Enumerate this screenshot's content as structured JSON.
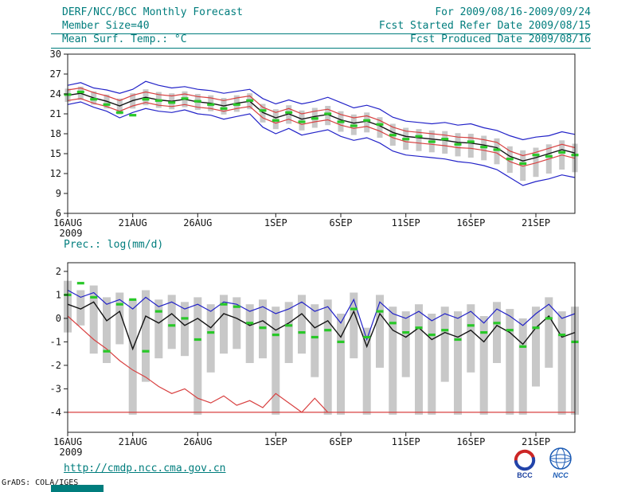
{
  "header": {
    "title": "DERF/NCC/BCC Monthly Forecast",
    "forecast_period": "For 2009/08/16-2009/09/24",
    "member_size": "Member Size=40",
    "refer_date": "Fcst Started Refer Date 2009/08/15",
    "variable_label": "Mean Surf. Temp.: °C",
    "produced_date": "Fcst Produced Date 2009/08/16"
  },
  "footer": {
    "url": "http://cmdp.ncc.cma.gov.cn",
    "credit": "GrADS: COLA/IGES",
    "bcc_label": "BCC",
    "ncc_label": "NCC"
  },
  "colors": {
    "teal": "#007d7d",
    "bar_gray": "#c8c8c8",
    "blue": "#2222c8",
    "red": "#d84040",
    "green": "#28c828",
    "black": "#141414"
  },
  "chart_data": [
    {
      "id": "temp-chart",
      "type": "line",
      "title": "Mean Surf. Temp.: °C",
      "xlabel": "",
      "ylabel": "°C",
      "ylim": [
        6,
        30
      ],
      "yticks": [
        6,
        9,
        12,
        15,
        18,
        21,
        24,
        27,
        30
      ],
      "x_count": 40,
      "x_year": "2009",
      "xticks": [
        {
          "label": "16AUG",
          "pos": 0
        },
        {
          "label": "21AUG",
          "pos": 5
        },
        {
          "label": "26AUG",
          "pos": 10
        },
        {
          "label": "1SEP",
          "pos": 16
        },
        {
          "label": "6SEP",
          "pos": 21
        },
        {
          "label": "11SEP",
          "pos": 26
        },
        {
          "label": "16SEP",
          "pos": 31
        },
        {
          "label": "21SEP",
          "pos": 36
        }
      ],
      "series": [
        {
          "name": "member-spread-bars",
          "kind": "bars",
          "color": "#c8c8c8",
          "upper": [
            24.8,
            25.1,
            24.4,
            23.9,
            23.3,
            24.1,
            24.7,
            24.3,
            24.1,
            24.4,
            24.0,
            23.8,
            23.4,
            23.8,
            24.1,
            22.5,
            21.7,
            22.3,
            21.5,
            21.9,
            22.2,
            21.4,
            20.9,
            21.2,
            20.5,
            19.5,
            18.9,
            18.7,
            18.5,
            18.4,
            18.1,
            18.0,
            17.7,
            17.3,
            16.1,
            15.5,
            15.9,
            16.4,
            17.0,
            16.5
          ],
          "lower": [
            22.8,
            23.1,
            22.4,
            21.8,
            20.9,
            21.8,
            22.3,
            21.9,
            21.7,
            22.0,
            21.6,
            21.4,
            20.9,
            21.3,
            21.7,
            19.7,
            18.7,
            19.5,
            18.5,
            18.9,
            19.3,
            18.3,
            17.8,
            18.2,
            17.4,
            16.2,
            15.6,
            15.4,
            15.2,
            15.0,
            14.6,
            14.4,
            14.0,
            13.4,
            12.1,
            10.9,
            11.5,
            12.0,
            12.6,
            12.2
          ]
        },
        {
          "name": "ensemble-max",
          "kind": "line",
          "color": "#2222c8",
          "values": [
            25.3,
            25.7,
            24.9,
            24.6,
            24.1,
            24.7,
            25.9,
            25.3,
            24.9,
            25.1,
            24.7,
            24.5,
            24.1,
            24.4,
            24.7,
            23.3,
            22.5,
            23.1,
            22.5,
            22.9,
            23.5,
            22.7,
            21.9,
            22.3,
            21.7,
            20.5,
            19.9,
            19.7,
            19.5,
            19.7,
            19.3,
            19.5,
            18.9,
            18.5,
            17.7,
            17.1,
            17.5,
            17.7,
            18.3,
            17.9
          ]
        },
        {
          "name": "ensemble-min",
          "kind": "line",
          "color": "#2222c8",
          "values": [
            22.4,
            22.8,
            22.0,
            21.4,
            20.4,
            21.2,
            21.8,
            21.4,
            21.2,
            21.6,
            21.0,
            20.8,
            20.2,
            20.6,
            21.0,
            19.0,
            18.0,
            18.8,
            17.8,
            18.2,
            18.6,
            17.6,
            17.0,
            17.4,
            16.6,
            15.4,
            14.8,
            14.6,
            14.4,
            14.2,
            13.8,
            13.6,
            13.2,
            12.6,
            11.4,
            10.2,
            10.8,
            11.2,
            11.8,
            11.4
          ]
        },
        {
          "name": "plus-1std",
          "kind": "line",
          "color": "#d84040",
          "values": [
            24.6,
            24.9,
            24.2,
            23.7,
            23.0,
            23.8,
            24.3,
            23.9,
            23.7,
            24.0,
            23.6,
            23.4,
            23.0,
            23.4,
            23.7,
            22.0,
            21.2,
            21.8,
            21.0,
            21.4,
            21.7,
            20.9,
            20.4,
            20.7,
            20.0,
            19.0,
            18.4,
            18.2,
            18.0,
            17.8,
            17.5,
            17.4,
            17.1,
            16.7,
            15.4,
            14.7,
            15.2,
            15.8,
            16.4,
            15.9
          ]
        },
        {
          "name": "minus-1std",
          "kind": "line",
          "color": "#d84040",
          "values": [
            23.0,
            23.3,
            22.6,
            22.1,
            21.4,
            22.2,
            22.7,
            22.3,
            22.1,
            22.4,
            22.0,
            21.8,
            21.4,
            21.8,
            22.1,
            20.4,
            19.6,
            20.2,
            19.4,
            19.8,
            20.1,
            19.3,
            18.8,
            19.1,
            18.4,
            17.4,
            16.8,
            16.6,
            16.4,
            16.2,
            15.9,
            15.8,
            15.5,
            15.1,
            13.8,
            13.1,
            13.6,
            14.2,
            14.8,
            14.3
          ]
        },
        {
          "name": "ensemble-mean",
          "kind": "line",
          "color": "#141414",
          "w": 1.4,
          "values": [
            23.8,
            24.1,
            23.4,
            22.9,
            22.2,
            23.0,
            23.5,
            23.1,
            22.9,
            23.2,
            22.8,
            22.6,
            22.2,
            22.6,
            22.9,
            21.2,
            20.4,
            21.0,
            20.2,
            20.6,
            20.9,
            20.1,
            19.6,
            19.9,
            19.2,
            18.2,
            17.6,
            17.4,
            17.2,
            17.0,
            16.7,
            16.6,
            16.3,
            15.9,
            14.6,
            13.9,
            14.4,
            15.0,
            15.6,
            15.1
          ]
        },
        {
          "name": "observation-dashes",
          "kind": "dash",
          "color": "#28c828",
          "values": [
            23.9,
            24.3,
            23.2,
            22.4,
            21.2,
            20.8,
            23.2,
            23.0,
            22.7,
            23.3,
            22.9,
            22.4,
            21.8,
            22.4,
            23.0,
            21.5,
            20.0,
            21.2,
            19.8,
            20.3,
            21.0,
            19.8,
            19.2,
            20.0,
            19.4,
            17.8,
            17.2,
            17.6,
            16.8,
            17.2,
            16.4,
            16.8,
            16.0,
            15.6,
            14.2,
            13.5,
            14.8,
            14.6,
            15.2,
            14.8
          ]
        }
      ]
    },
    {
      "id": "prec-chart",
      "type": "line",
      "title": "Prec.: log(mm/d)",
      "xlabel": "",
      "ylabel": "log(mm/d)",
      "ylim": [
        -4,
        2
      ],
      "yticks": [
        -4,
        -3,
        -2,
        -1,
        0,
        1,
        2
      ],
      "x_count": 40,
      "x_year": "2009",
      "xticks": [
        {
          "label": "16AUG",
          "pos": 0
        },
        {
          "label": "21AUG",
          "pos": 5
        },
        {
          "label": "26AUG",
          "pos": 10
        },
        {
          "label": "1SEP",
          "pos": 16
        },
        {
          "label": "6SEP",
          "pos": 21
        },
        {
          "label": "11SEP",
          "pos": 26
        },
        {
          "label": "16SEP",
          "pos": 31
        },
        {
          "label": "21SEP",
          "pos": 36
        }
      ],
      "series": [
        {
          "name": "member-spread-bars",
          "kind": "bars",
          "color": "#c8c8c8",
          "upper": [
            1.6,
            1.2,
            1.4,
            0.9,
            1.1,
            0.8,
            1.2,
            0.8,
            1.0,
            0.7,
            0.9,
            0.6,
            1.0,
            0.9,
            0.6,
            0.8,
            0.5,
            0.7,
            1.0,
            0.6,
            0.8,
            0.2,
            1.1,
            -0.4,
            1.0,
            0.5,
            0.3,
            0.6,
            0.2,
            0.5,
            0.3,
            0.6,
            0.1,
            0.7,
            0.4,
            0.0,
            0.5,
            0.9,
            0.3,
            0.5
          ],
          "lower": [
            -0.6,
            -0.3,
            -1.5,
            -1.9,
            -1.1,
            -4.1,
            -2.7,
            -1.7,
            -1.3,
            -1.6,
            -4.1,
            -2.3,
            -1.5,
            -1.3,
            -1.9,
            -1.7,
            -4.1,
            -1.9,
            -1.5,
            -2.5,
            -4.1,
            -4.1,
            -1.7,
            -4.1,
            -2.1,
            -4.1,
            -2.5,
            -4.1,
            -4.1,
            -2.7,
            -4.1,
            -2.3,
            -4.1,
            -1.9,
            -4.1,
            -4.1,
            -2.9,
            -2.1,
            -4.1,
            -4.1
          ]
        },
        {
          "name": "zero-precip-floor",
          "kind": "hline",
          "color": "#d84040",
          "value": -4.0
        },
        {
          "name": "ensemble-max",
          "kind": "line",
          "color": "#2222c8",
          "values": [
            1.2,
            0.9,
            1.1,
            0.6,
            0.8,
            0.4,
            0.9,
            0.5,
            0.7,
            0.4,
            0.6,
            0.3,
            0.7,
            0.6,
            0.3,
            0.5,
            0.2,
            0.4,
            0.7,
            0.3,
            0.5,
            -0.2,
            0.8,
            -0.9,
            0.7,
            0.2,
            0.0,
            0.3,
            -0.1,
            0.2,
            0.0,
            0.3,
            -0.2,
            0.4,
            0.1,
            -0.3,
            0.2,
            0.6,
            0.0,
            0.2
          ]
        },
        {
          "name": "ensemble-mean",
          "kind": "line",
          "color": "#141414",
          "w": 1.4,
          "values": [
            0.6,
            0.4,
            0.7,
            -0.1,
            0.3,
            -1.3,
            0.1,
            -0.2,
            0.2,
            -0.3,
            0.0,
            -0.4,
            0.2,
            0.0,
            -0.3,
            -0.1,
            -0.5,
            -0.2,
            0.2,
            -0.4,
            -0.1,
            -0.8,
            0.3,
            -1.2,
            0.2,
            -0.5,
            -0.8,
            -0.4,
            -0.9,
            -0.6,
            -0.8,
            -0.5,
            -1.0,
            -0.3,
            -0.6,
            -1.1,
            -0.4,
            0.1,
            -0.8,
            -0.6
          ]
        },
        {
          "name": "observation-curve",
          "kind": "line",
          "color": "#d84040",
          "values": [
            0.1,
            -0.4,
            -0.9,
            -1.3,
            -1.8,
            -2.2,
            -2.5,
            -2.9,
            -3.2,
            -3.0,
            -3.4,
            -3.6,
            -3.3,
            -3.7,
            -3.5,
            -3.8,
            -3.2,
            -3.6,
            -4.0,
            -3.4,
            -4.0,
            null,
            null,
            null,
            null,
            null,
            null,
            null,
            null,
            null,
            null,
            null,
            null,
            null,
            null,
            null,
            null,
            null,
            null,
            null
          ]
        },
        {
          "name": "observation-dashes",
          "kind": "dash",
          "color": "#28c828",
          "values": [
            1.0,
            1.5,
            0.9,
            -1.4,
            0.6,
            0.8,
            -1.4,
            0.3,
            -0.3,
            0.0,
            -0.9,
            -0.6,
            0.6,
            0.5,
            -0.2,
            -0.4,
            -0.7,
            -0.3,
            -0.6,
            -0.8,
            -0.5,
            -1.0,
            0.4,
            -0.8,
            0.3,
            -0.2,
            -0.6,
            -0.4,
            -0.7,
            -0.5,
            -0.9,
            -0.3,
            -0.6,
            -0.2,
            -0.5,
            -1.2,
            -0.4,
            0.0,
            -0.7,
            -1.0
          ]
        }
      ]
    }
  ]
}
